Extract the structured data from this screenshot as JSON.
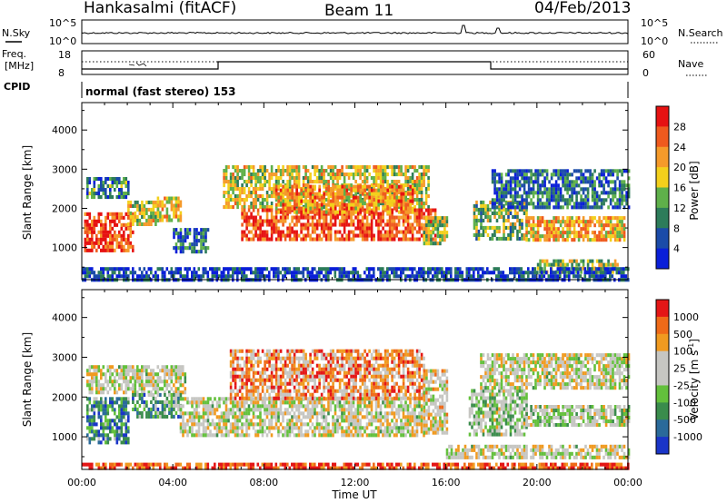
{
  "header": {
    "station": "Hankasalmi (fitACF)",
    "beam": "Beam 11",
    "date": "04/Feb/2013"
  },
  "sky_panel": {
    "left_label": "N.Sky",
    "right_label": "N.Search",
    "left_ticks": [
      "10^5",
      "10^0"
    ],
    "right_ticks": [
      "10^5",
      "10^0"
    ]
  },
  "freq_panel": {
    "left_label_1": "Freq.",
    "left_label_2": "[MHz]",
    "right_label": "Nave",
    "left_ticks": [
      "18",
      "8"
    ],
    "right_ticks": [
      "60",
      "0"
    ]
  },
  "cpid": {
    "label": "CPID",
    "text": "normal (fast stereo) 153"
  },
  "x_axis": {
    "title": "Time UT",
    "ticks": [
      "00:00",
      "04:00",
      "08:00",
      "12:00",
      "16:00",
      "20:00",
      "00:00"
    ]
  },
  "chart_data": [
    {
      "type": "heatmap",
      "name": "power",
      "ylabel": "Slant Range [km]",
      "y_ticks": [
        1000,
        2000,
        3000,
        4000
      ],
      "ylim": [
        180,
        4700
      ],
      "xlim_hours": [
        0,
        24
      ],
      "colorbar": {
        "title": "Power [dB]",
        "ticks": [
          4,
          8,
          12,
          16,
          20,
          24,
          28
        ],
        "colors": [
          "#0a1fd8",
          "#1b4ba8",
          "#2d7c5a",
          "#5fb04a",
          "#f3d01c",
          "#f59a2a",
          "#ef5a1e",
          "#e61212"
        ]
      },
      "regions": [
        {
          "t0": 0.2,
          "t1": 2.0,
          "r0": 2300,
          "r1": 2800,
          "level": 0.3
        },
        {
          "t0": 0.1,
          "t1": 2.2,
          "r0": 900,
          "r1": 1900,
          "level": 0.85
        },
        {
          "t0": 2.0,
          "t1": 3.3,
          "r0": 1600,
          "r1": 2200,
          "level": 0.55
        },
        {
          "t0": 3.3,
          "t1": 4.3,
          "r0": 1700,
          "r1": 2300,
          "level": 0.6
        },
        {
          "t0": 4.0,
          "t1": 5.5,
          "r0": 900,
          "r1": 1500,
          "level": 0.25
        },
        {
          "t0": 6.2,
          "t1": 15.2,
          "r0": 2000,
          "r1": 3100,
          "level": 0.55
        },
        {
          "t0": 7.0,
          "t1": 15.5,
          "r0": 1200,
          "r1": 2000,
          "level": 0.85
        },
        {
          "t0": 8.5,
          "t1": 14.5,
          "r0": 1900,
          "r1": 2600,
          "level": 0.7
        },
        {
          "t0": 15.0,
          "t1": 16.0,
          "r0": 1100,
          "r1": 1800,
          "level": 0.5
        },
        {
          "t0": 17.2,
          "t1": 19.5,
          "r0": 1200,
          "r1": 2200,
          "level": 0.45
        },
        {
          "t0": 19.5,
          "t1": 23.8,
          "r0": 1200,
          "r1": 1800,
          "level": 0.65
        },
        {
          "t0": 18.0,
          "t1": 24.0,
          "r0": 2000,
          "r1": 3000,
          "level": 0.25
        },
        {
          "t0": 20.0,
          "t1": 23.5,
          "r0": 400,
          "r1": 700,
          "level": 0.5
        },
        {
          "t0": 0.0,
          "t1": 24.0,
          "r0": 180,
          "r1": 500,
          "level": 0.15
        }
      ]
    },
    {
      "type": "heatmap",
      "name": "velocity",
      "ylabel": "Slant Range [km]",
      "y_ticks": [
        1000,
        2000,
        3000,
        4000
      ],
      "ylim": [
        180,
        4700
      ],
      "xlim_hours": [
        0,
        24
      ],
      "colorbar": {
        "title": "Velocity [m s^-1]",
        "ticks": [
          1000,
          500,
          100,
          25,
          -25,
          -100,
          -500,
          -1000
        ],
        "colors": [
          "#1a35c8",
          "#2a6a9a",
          "#3a8c4c",
          "#63c03c",
          "#c6c6c2",
          "#c6c6c2",
          "#f09a20",
          "#ef6a18",
          "#e41616"
        ]
      },
      "regions": [
        {
          "t0": 0.2,
          "t1": 4.5,
          "r0": 2100,
          "r1": 2800,
          "level": 0.55
        },
        {
          "t0": 0.2,
          "t1": 2.0,
          "r0": 900,
          "r1": 2000,
          "level": 0.25
        },
        {
          "t0": 2.2,
          "t1": 4.3,
          "r0": 1500,
          "r1": 2100,
          "level": 0.3
        },
        {
          "t0": 4.3,
          "t1": 15.0,
          "r0": 1000,
          "r1": 2000,
          "level": 0.55
        },
        {
          "t0": 6.5,
          "t1": 15.0,
          "r0": 2000,
          "r1": 3200,
          "level": 0.75
        },
        {
          "t0": 15.0,
          "t1": 16.0,
          "r0": 1100,
          "r1": 2700,
          "level": 0.6
        },
        {
          "t0": 17.0,
          "t1": 19.5,
          "r0": 1100,
          "r1": 2200,
          "level": 0.45
        },
        {
          "t0": 17.5,
          "t1": 24.0,
          "r0": 2200,
          "r1": 3100,
          "level": 0.55
        },
        {
          "t0": 19.5,
          "t1": 24.0,
          "r0": 1300,
          "r1": 1800,
          "level": 0.5
        },
        {
          "t0": 16.0,
          "t1": 24.0,
          "r0": 500,
          "r1": 800,
          "level": 0.55
        },
        {
          "t0": 0.0,
          "t1": 24.0,
          "r0": 180,
          "r1": 350,
          "level": 0.9
        }
      ]
    }
  ]
}
